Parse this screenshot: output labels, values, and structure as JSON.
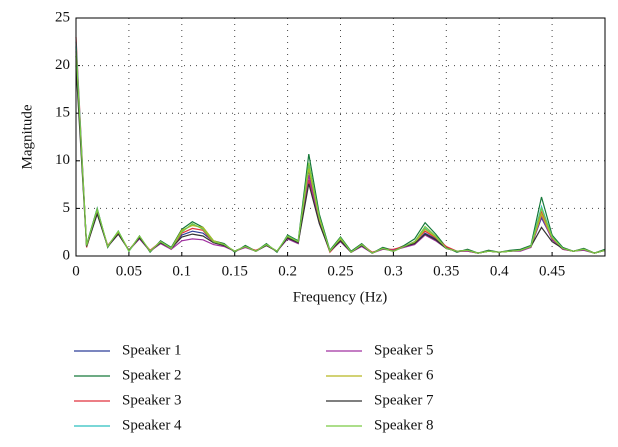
{
  "chart_data": {
    "type": "line",
    "x_label": "Frequency (Hz)",
    "y_label": "Magnitude",
    "x": [
      0,
      0.01,
      0.02,
      0.03,
      0.04,
      0.05,
      0.06,
      0.07,
      0.08,
      0.09,
      0.1,
      0.11,
      0.12,
      0.13,
      0.14,
      0.15,
      0.16,
      0.17,
      0.18,
      0.19,
      0.2,
      0.21,
      0.22,
      0.23,
      0.24,
      0.25,
      0.26,
      0.27,
      0.28,
      0.29,
      0.3,
      0.31,
      0.32,
      0.33,
      0.34,
      0.35,
      0.36,
      0.37,
      0.38,
      0.39,
      0.4,
      0.41,
      0.42,
      0.43,
      0.44,
      0.45,
      0.46,
      0.47,
      0.48,
      0.49,
      0.5
    ],
    "series": [
      {
        "name": "Speaker 1",
        "color": "#2c3e99",
        "values": [
          22,
          1,
          4.6,
          1,
          2.4,
          0.6,
          2,
          0.5,
          1.4,
          0.8,
          2.2,
          2.6,
          2.4,
          1.5,
          1.1,
          0.5,
          1,
          0.5,
          1.2,
          0.5,
          2,
          1.4,
          9,
          3.8,
          0.5,
          1.7,
          0.4,
          1.1,
          0.3,
          0.8,
          0.5,
          1,
          1.3,
          2.4,
          1.8,
          0.8,
          0.5,
          0.6,
          0.3,
          0.5,
          0.4,
          0.5,
          0.6,
          1,
          4,
          1.8,
          0.8,
          0.5,
          0.7,
          0.3,
          0.6
        ]
      },
      {
        "name": "Speaker 2",
        "color": "#16793a",
        "values": [
          21,
          1.2,
          5,
          0.9,
          2.6,
          0.5,
          2.1,
          0.4,
          1.6,
          0.9,
          2.8,
          3.6,
          3,
          1.6,
          1.3,
          0.4,
          1.1,
          0.5,
          1.3,
          0.4,
          2.2,
          1.6,
          10.7,
          4.4,
          0.6,
          2,
          0.5,
          1.3,
          0.3,
          0.9,
          0.6,
          1.1,
          1.8,
          3.5,
          2.3,
          0.9,
          0.4,
          0.7,
          0.3,
          0.6,
          0.4,
          0.6,
          0.7,
          1.1,
          6.2,
          2.2,
          0.9,
          0.5,
          0.8,
          0.3,
          0.7
        ]
      },
      {
        "name": "Speaker 3",
        "color": "#e0323c",
        "values": [
          23,
          0.9,
          4.7,
          1.1,
          2.5,
          0.6,
          1.9,
          0.6,
          1.5,
          0.7,
          2.4,
          2.9,
          2.7,
          1.4,
          1.2,
          0.5,
          0.9,
          0.6,
          1.1,
          0.5,
          1.9,
          1.5,
          8,
          3.6,
          0.4,
          1.6,
          0.4,
          1.2,
          0.4,
          0.7,
          0.7,
          1,
          1.5,
          2.6,
          1.9,
          1,
          0.5,
          0.5,
          0.3,
          0.5,
          0.4,
          0.5,
          0.6,
          0.9,
          4.6,
          1.9,
          0.7,
          0.5,
          0.7,
          0.3,
          0.6
        ]
      },
      {
        "name": "Speaker 4",
        "color": "#2bbfbf",
        "values": [
          22.5,
          1,
          4.9,
          1,
          2.6,
          0.5,
          2,
          0.5,
          1.5,
          0.8,
          2.6,
          3.3,
          2.9,
          1.5,
          1.2,
          0.5,
          1,
          0.5,
          1.2,
          0.5,
          2.1,
          1.5,
          9.6,
          4,
          0.5,
          1.8,
          0.4,
          1.2,
          0.3,
          0.8,
          0.5,
          1,
          1.4,
          2.9,
          2,
          0.8,
          0.5,
          0.6,
          0.3,
          0.5,
          0.4,
          0.5,
          0.6,
          1,
          5.2,
          2,
          0.8,
          0.5,
          0.7,
          0.3,
          0.6
        ]
      },
      {
        "name": "Speaker 5",
        "color": "#a030a0",
        "values": [
          21.5,
          1.1,
          4.5,
          1,
          2.3,
          0.6,
          1.8,
          0.5,
          1.3,
          0.7,
          1.6,
          1.8,
          1.7,
          1.2,
          1,
          0.5,
          0.9,
          0.5,
          1.1,
          0.5,
          1.8,
          1.3,
          8.5,
          3.5,
          0.5,
          1.5,
          0.4,
          1,
          0.3,
          0.7,
          0.6,
          0.9,
          1.2,
          2.2,
          1.6,
          0.8,
          0.5,
          0.5,
          0.3,
          0.5,
          0.4,
          0.5,
          0.5,
          0.9,
          4.2,
          1.7,
          0.7,
          0.5,
          0.6,
          0.3,
          0.6
        ]
      },
      {
        "name": "Speaker 6",
        "color": "#b8b820",
        "values": [
          21,
          1,
          4.8,
          1,
          2.5,
          0.6,
          2,
          0.5,
          1.5,
          0.8,
          2.7,
          3.2,
          3,
          1.6,
          1.2,
          0.5,
          1,
          0.5,
          1.2,
          0.5,
          2,
          1.5,
          9.2,
          3.9,
          0.5,
          1.8,
          0.4,
          1.2,
          0.3,
          0.8,
          0.5,
          1,
          1.4,
          2.8,
          2,
          0.8,
          0.5,
          0.6,
          0.3,
          0.5,
          0.4,
          0.5,
          0.6,
          1,
          4.4,
          1.9,
          0.8,
          0.5,
          0.7,
          0.3,
          0.6
        ]
      },
      {
        "name": "Speaker 7",
        "color": "#333333",
        "values": [
          20,
          1,
          4.4,
          1,
          2.3,
          0.6,
          1.9,
          0.5,
          1.4,
          0.8,
          2,
          2.3,
          2.1,
          1.4,
          1.1,
          0.5,
          1,
          0.5,
          1.1,
          0.5,
          1.9,
          1.4,
          7.6,
          3.4,
          0.5,
          1.6,
          0.4,
          1.1,
          0.3,
          0.8,
          0.5,
          1,
          1.3,
          2.3,
          1.7,
          0.8,
          0.5,
          0.6,
          0.3,
          0.5,
          0.4,
          0.5,
          0.6,
          1,
          3,
          1.5,
          0.8,
          0.5,
          0.7,
          0.3,
          0.6
        ]
      },
      {
        "name": "Speaker 8",
        "color": "#7ac943",
        "values": [
          21.8,
          1.1,
          4.9,
          1,
          2.6,
          0.5,
          2.1,
          0.5,
          1.5,
          0.8,
          2.5,
          3.4,
          2.8,
          1.5,
          1.2,
          0.5,
          1,
          0.5,
          1.2,
          0.5,
          2.1,
          1.5,
          9.8,
          4.1,
          0.5,
          1.9,
          0.4,
          1.2,
          0.3,
          0.8,
          0.5,
          1,
          1.5,
          3.1,
          2.1,
          0.8,
          0.5,
          0.6,
          0.3,
          0.5,
          0.4,
          0.5,
          0.6,
          1,
          5,
          2,
          0.8,
          0.5,
          0.7,
          0.3,
          0.6
        ]
      }
    ],
    "xlim": [
      0,
      0.5
    ],
    "ylim": [
      0,
      25
    ],
    "xticks": [
      0,
      0.05,
      0.1,
      0.15,
      0.2,
      0.25,
      0.3,
      0.35,
      0.4,
      0.45
    ],
    "yticks": [
      0,
      5,
      10,
      15,
      20,
      25
    ],
    "grid": true
  }
}
